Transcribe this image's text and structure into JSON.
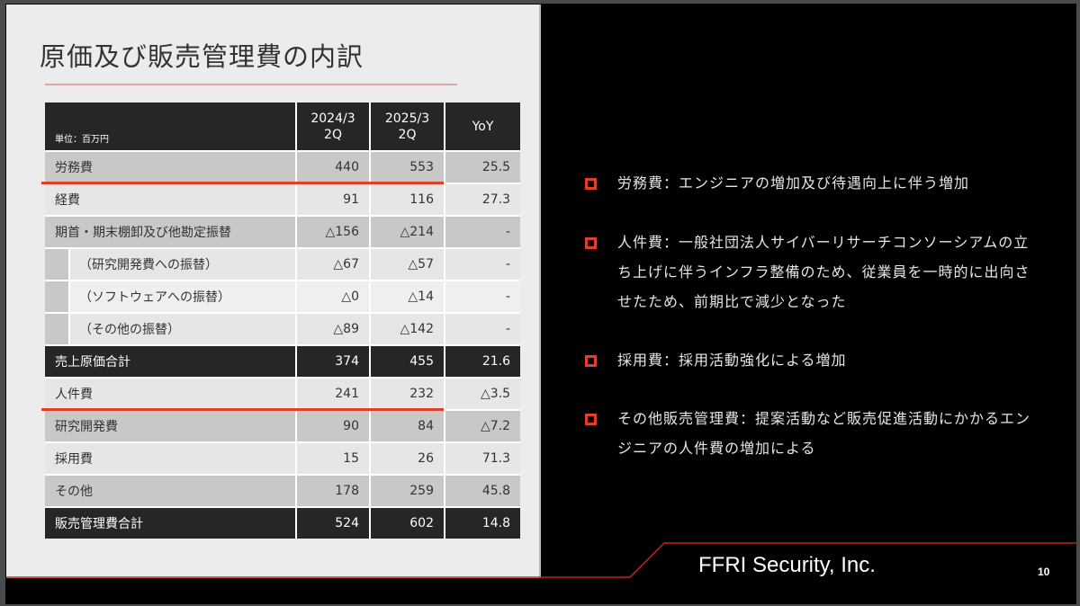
{
  "slide": {
    "title": "原価及び販売管理費の内訳",
    "page_number": "10",
    "company": "FFRI Security, Inc.",
    "colors": {
      "accent": "#e0402a",
      "dark": "#262626",
      "panel": "#ececec",
      "background": "#000000"
    }
  },
  "table": {
    "unit_label": "単位：百万円",
    "columns": [
      {
        "line1": "2024/3",
        "line2": "2Q"
      },
      {
        "line1": "2025/3",
        "line2": "2Q"
      },
      {
        "line1": "YoY",
        "line2": ""
      }
    ],
    "rows": [
      {
        "label": "労務費",
        "v2024": "440",
        "v2025": "553",
        "yoy": "25.5",
        "style": "g1",
        "highlight": true
      },
      {
        "label": "経費",
        "v2024": "91",
        "v2025": "116",
        "yoy": "27.3",
        "style": "g2"
      },
      {
        "label": "期首・期末棚卸及び他勘定振替",
        "v2024": "△156",
        "v2025": "△214",
        "yoy": "-",
        "style": "g1"
      },
      {
        "label": "（研究開発費への振替）",
        "v2024": "△67",
        "v2025": "△57",
        "yoy": "-",
        "style": "g2",
        "sub": true
      },
      {
        "label": "（ソフトウェアへの振替）",
        "v2024": "△0",
        "v2025": "△14",
        "yoy": "-",
        "style": "g2",
        "sub": true
      },
      {
        "label": "（その他の振替）",
        "v2024": "△89",
        "v2025": "△142",
        "yoy": "-",
        "style": "g2",
        "sub": true
      },
      {
        "label": "売上原価合計",
        "v2024": "374",
        "v2025": "455",
        "yoy": "21.6",
        "style": "dk"
      },
      {
        "label": "人件費",
        "v2024": "241",
        "v2025": "232",
        "yoy": "△3.5",
        "style": "g2",
        "highlight": true
      },
      {
        "label": "研究開発費",
        "v2024": "90",
        "v2025": "84",
        "yoy": "△7.2",
        "style": "g1"
      },
      {
        "label": "採用費",
        "v2024": "15",
        "v2025": "26",
        "yoy": "71.3",
        "style": "g2"
      },
      {
        "label": "その他",
        "v2024": "178",
        "v2025": "259",
        "yoy": "45.8",
        "style": "g1"
      },
      {
        "label": "販売管理費合計",
        "v2024": "524",
        "v2025": "602",
        "yoy": "14.8",
        "style": "dk"
      }
    ]
  },
  "notes": [
    {
      "text": "労務費：エンジニアの増加及び待遇向上に伴う増加"
    },
    {
      "text": "人件費：一般社団法人サイバーリサーチコンソーシアムの立ち上げに伴うインフラ整備のため、従業員を一時的に出向させたため、前期比で減少となった"
    },
    {
      "text": "採用費：採用活動強化による増加"
    },
    {
      "text": "その他販売管理費：提案活動など販売促進活動にかかるエンジニアの人件費の増加による"
    }
  ]
}
